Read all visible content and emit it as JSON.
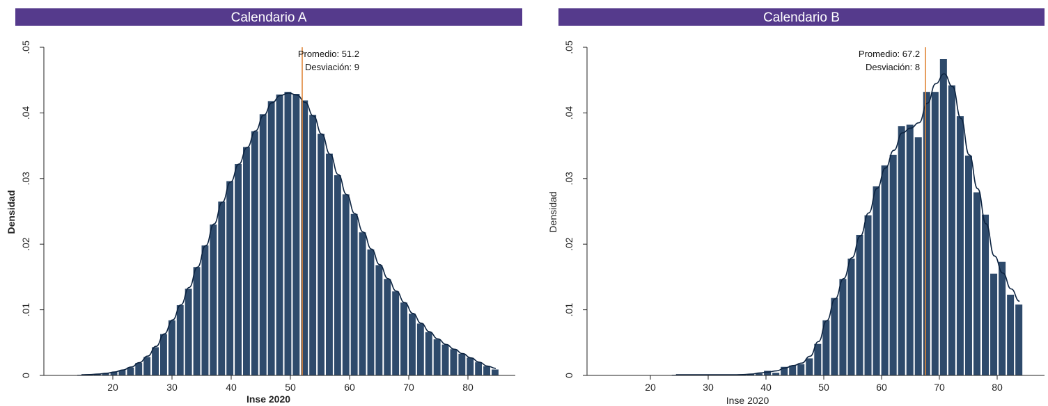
{
  "chart_data": [
    {
      "type": "histogram",
      "title": "Calendario A",
      "xlabel": "Inse 2020",
      "ylabel": "Densidad",
      "xlim": [
        10,
        90
      ],
      "ylim": [
        0,
        0.05
      ],
      "x_ticks": [
        "20",
        "30",
        "40",
        "50",
        "60",
        "70",
        "80"
      ],
      "y_ticks": [
        "0",
        ".01",
        ".02",
        ".03",
        ".04",
        ".05"
      ],
      "bin_start": 14,
      "bin_width": 1.4,
      "density": [
        0.0001,
        0.0001,
        0.0002,
        0.0003,
        0.0005,
        0.0008,
        0.0012,
        0.0019,
        0.0028,
        0.0043,
        0.0063,
        0.0084,
        0.0107,
        0.0132,
        0.0165,
        0.0198,
        0.023,
        0.0265,
        0.0296,
        0.0322,
        0.0348,
        0.0372,
        0.0398,
        0.0418,
        0.0428,
        0.0432,
        0.0429,
        0.0419,
        0.0397,
        0.0368,
        0.0338,
        0.0305,
        0.0276,
        0.0246,
        0.0218,
        0.0192,
        0.0168,
        0.0147,
        0.0128,
        0.0111,
        0.0094,
        0.0079,
        0.0066,
        0.0055,
        0.0047,
        0.004,
        0.0033,
        0.0027,
        0.002,
        0.0014,
        0.0009
      ],
      "mean_line": 52,
      "annotation": [
        "Promedio: 51.2",
        "Desviación: 9"
      ]
    },
    {
      "type": "histogram",
      "title": "Calendario B",
      "xlabel": "Inse 2020",
      "ylabel": "Densidad",
      "xlim": [
        10,
        90
      ],
      "ylim": [
        0,
        0.05
      ],
      "x_ticks": [
        "20",
        "30",
        "40",
        "50",
        "60",
        "70",
        "80"
      ],
      "y_ticks": [
        "0",
        ".01",
        ".02",
        ".03",
        ".04",
        ".05"
      ],
      "bin_start": 23.7,
      "bin_width": 1.45,
      "density": [
        0.0001,
        0.0001,
        0.0001,
        0.0001,
        0.0001,
        0.0001,
        0.0001,
        0.0001,
        0.0001,
        0.0002,
        0.0003,
        0.0007,
        0.0004,
        0.0013,
        0.0015,
        0.0017,
        0.0026,
        0.0048,
        0.0084,
        0.0118,
        0.0147,
        0.0178,
        0.0214,
        0.0244,
        0.0288,
        0.032,
        0.0336,
        0.038,
        0.0382,
        0.0363,
        0.0432,
        0.0432,
        0.0482,
        0.0442,
        0.0395,
        0.0335,
        0.0279,
        0.0245,
        0.0155,
        0.0173,
        0.0123,
        0.0108
      ],
      "mean_line": 67.6,
      "annotation": [
        "Promedio: 67.2",
        "Desviación: 8"
      ]
    }
  ],
  "colors": {
    "banner": "#553a8c",
    "bar": "#2e4a6b",
    "curve": "#0c2340",
    "mean_line": "#e0873a",
    "axis": "#222222"
  }
}
